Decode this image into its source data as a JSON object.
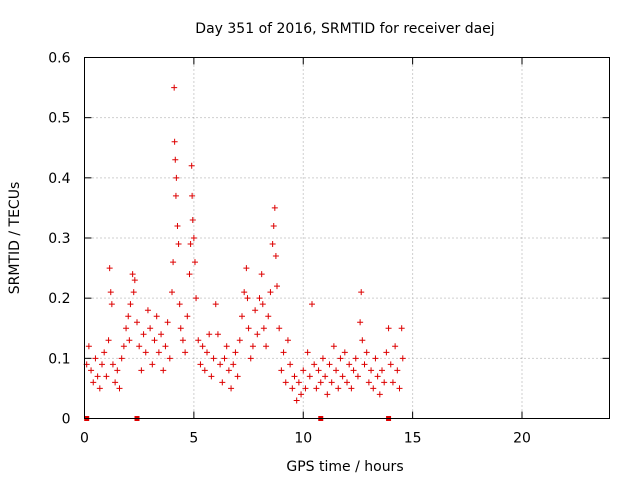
{
  "chart_data": {
    "type": "scatter",
    "title": "Day 351 of 2016, SRMTID for receiver daej",
    "xlabel": "GPS time / hours",
    "ylabel": "SRMTID / TECUs",
    "xlim": [
      0,
      24
    ],
    "ylim": [
      0,
      0.6
    ],
    "xticks": [
      0,
      5,
      10,
      15,
      20
    ],
    "xtick_labels": [
      "0",
      "5",
      "10",
      "15",
      "20"
    ],
    "yticks": [
      0,
      0.1,
      0.2,
      0.3,
      0.4,
      0.5,
      0.6
    ],
    "ytick_labels": [
      "0",
      "0.1",
      "0.2",
      "0.3",
      "0.4",
      "0.5",
      "0.6"
    ],
    "grid": true,
    "marker": "+",
    "color": "#dd0000",
    "series": [
      {
        "name": "SRMTID",
        "points": [
          [
            0.1,
            0.09
          ],
          [
            0.2,
            0.12
          ],
          [
            0.3,
            0.08
          ],
          [
            0.4,
            0.06
          ],
          [
            0.5,
            0.1
          ],
          [
            0.6,
            0.07
          ],
          [
            0.7,
            0.05
          ],
          [
            0.8,
            0.09
          ],
          [
            0.9,
            0.11
          ],
          [
            1.0,
            0.07
          ],
          [
            1.1,
            0.13
          ],
          [
            1.15,
            0.25
          ],
          [
            1.2,
            0.21
          ],
          [
            1.25,
            0.19
          ],
          [
            1.3,
            0.09
          ],
          [
            1.4,
            0.06
          ],
          [
            1.5,
            0.08
          ],
          [
            1.6,
            0.05
          ],
          [
            1.7,
            0.1
          ],
          [
            1.8,
            0.12
          ],
          [
            1.9,
            0.15
          ],
          [
            2.0,
            0.17
          ],
          [
            2.05,
            0.13
          ],
          [
            2.1,
            0.19
          ],
          [
            2.2,
            0.24
          ],
          [
            2.25,
            0.21
          ],
          [
            2.3,
            0.23
          ],
          [
            2.4,
            0.16
          ],
          [
            2.5,
            0.12
          ],
          [
            2.6,
            0.08
          ],
          [
            2.7,
            0.14
          ],
          [
            2.8,
            0.11
          ],
          [
            2.9,
            0.18
          ],
          [
            3.0,
            0.15
          ],
          [
            3.1,
            0.09
          ],
          [
            3.2,
            0.13
          ],
          [
            3.3,
            0.17
          ],
          [
            3.4,
            0.11
          ],
          [
            3.5,
            0.14
          ],
          [
            3.6,
            0.08
          ],
          [
            3.7,
            0.12
          ],
          [
            3.8,
            0.16
          ],
          [
            3.9,
            0.1
          ],
          [
            4.0,
            0.21
          ],
          [
            4.05,
            0.26
          ],
          [
            4.1,
            0.55
          ],
          [
            4.12,
            0.46
          ],
          [
            4.15,
            0.43
          ],
          [
            4.18,
            0.37
          ],
          [
            4.2,
            0.4
          ],
          [
            4.25,
            0.32
          ],
          [
            4.3,
            0.29
          ],
          [
            4.35,
            0.19
          ],
          [
            4.4,
            0.15
          ],
          [
            4.5,
            0.13
          ],
          [
            4.6,
            0.11
          ],
          [
            4.7,
            0.17
          ],
          [
            4.8,
            0.24
          ],
          [
            4.85,
            0.29
          ],
          [
            4.9,
            0.42
          ],
          [
            4.92,
            0.37
          ],
          [
            4.95,
            0.33
          ],
          [
            5.0,
            0.3
          ],
          [
            5.05,
            0.26
          ],
          [
            5.1,
            0.2
          ],
          [
            5.2,
            0.13
          ],
          [
            5.3,
            0.09
          ],
          [
            5.4,
            0.12
          ],
          [
            5.5,
            0.08
          ],
          [
            5.6,
            0.11
          ],
          [
            5.7,
            0.14
          ],
          [
            5.8,
            0.07
          ],
          [
            5.9,
            0.1
          ],
          [
            6.0,
            0.19
          ],
          [
            6.1,
            0.14
          ],
          [
            6.2,
            0.09
          ],
          [
            6.3,
            0.06
          ],
          [
            6.4,
            0.1
          ],
          [
            6.5,
            0.12
          ],
          [
            6.6,
            0.08
          ],
          [
            6.7,
            0.05
          ],
          [
            6.8,
            0.09
          ],
          [
            6.9,
            0.11
          ],
          [
            7.0,
            0.07
          ],
          [
            7.1,
            0.13
          ],
          [
            7.2,
            0.17
          ],
          [
            7.3,
            0.21
          ],
          [
            7.4,
            0.25
          ],
          [
            7.45,
            0.2
          ],
          [
            7.5,
            0.15
          ],
          [
            7.6,
            0.1
          ],
          [
            7.7,
            0.12
          ],
          [
            7.8,
            0.18
          ],
          [
            7.9,
            0.14
          ],
          [
            8.0,
            0.2
          ],
          [
            8.1,
            0.24
          ],
          [
            8.15,
            0.19
          ],
          [
            8.2,
            0.15
          ],
          [
            8.3,
            0.12
          ],
          [
            8.4,
            0.17
          ],
          [
            8.5,
            0.21
          ],
          [
            8.6,
            0.29
          ],
          [
            8.65,
            0.32
          ],
          [
            8.7,
            0.35
          ],
          [
            8.75,
            0.27
          ],
          [
            8.8,
            0.22
          ],
          [
            8.9,
            0.15
          ],
          [
            9.0,
            0.08
          ],
          [
            9.1,
            0.11
          ],
          [
            9.2,
            0.06
          ],
          [
            9.3,
            0.13
          ],
          [
            9.4,
            0.09
          ],
          [
            9.5,
            0.05
          ],
          [
            9.6,
            0.07
          ],
          [
            9.7,
            0.03
          ],
          [
            9.8,
            0.06
          ],
          [
            9.9,
            0.04
          ],
          [
            10.0,
            0.08
          ],
          [
            10.1,
            0.05
          ],
          [
            10.2,
            0.11
          ],
          [
            10.3,
            0.07
          ],
          [
            10.4,
            0.19
          ],
          [
            10.5,
            0.09
          ],
          [
            10.6,
            0.05
          ],
          [
            10.7,
            0.08
          ],
          [
            10.8,
            0.06
          ],
          [
            10.9,
            0.1
          ],
          [
            11.0,
            0.07
          ],
          [
            11.1,
            0.04
          ],
          [
            11.2,
            0.09
          ],
          [
            11.3,
            0.06
          ],
          [
            11.4,
            0.12
          ],
          [
            11.5,
            0.08
          ],
          [
            11.6,
            0.05
          ],
          [
            11.7,
            0.1
          ],
          [
            11.8,
            0.07
          ],
          [
            11.9,
            0.11
          ],
          [
            12.0,
            0.06
          ],
          [
            12.1,
            0.09
          ],
          [
            12.2,
            0.05
          ],
          [
            12.3,
            0.08
          ],
          [
            12.4,
            0.1
          ],
          [
            12.5,
            0.07
          ],
          [
            12.6,
            0.16
          ],
          [
            12.65,
            0.21
          ],
          [
            12.7,
            0.13
          ],
          [
            12.8,
            0.09
          ],
          [
            12.9,
            0.11
          ],
          [
            13.0,
            0.06
          ],
          [
            13.1,
            0.08
          ],
          [
            13.2,
            0.05
          ],
          [
            13.3,
            0.1
          ],
          [
            13.4,
            0.07
          ],
          [
            13.5,
            0.04
          ],
          [
            13.6,
            0.08
          ],
          [
            13.7,
            0.06
          ],
          [
            13.8,
            0.11
          ],
          [
            13.9,
            0.15
          ],
          [
            14.0,
            0.09
          ],
          [
            14.1,
            0.06
          ],
          [
            14.2,
            0.12
          ],
          [
            14.3,
            0.08
          ],
          [
            14.4,
            0.05
          ],
          [
            14.5,
            0.15
          ],
          [
            14.55,
            0.1
          ]
        ]
      }
    ],
    "baseline_markers": [
      [
        0.1,
        0
      ],
      [
        2.4,
        0
      ],
      [
        10.8,
        0
      ],
      [
        13.9,
        0
      ]
    ]
  }
}
